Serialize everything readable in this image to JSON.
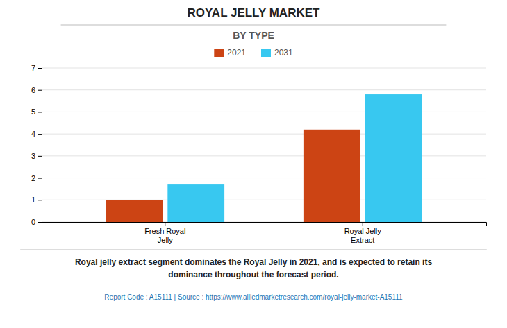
{
  "chart_data": {
    "type": "bar",
    "title": "ROYAL JELLY MARKET",
    "subtitle": "BY TYPE",
    "categories": [
      "Fresh Royal\nJelly",
      "Royal Jelly\nExtract"
    ],
    "series": [
      {
        "name": "2021",
        "color": "#CC4414",
        "values": [
          1.0,
          4.2
        ]
      },
      {
        "name": "2031",
        "color": "#38C8F0",
        "values": [
          1.7,
          5.8
        ]
      }
    ],
    "ylim": [
      0,
      7
    ],
    "yticks": [
      0,
      1,
      2,
      3,
      4,
      5,
      6,
      7
    ],
    "grid": true,
    "legend": "top",
    "annotations": [
      "Royal jelly extract segment dominates the Royal Jelly in 2021, and is expected to retain its\ndominance throughout the forecast period.",
      "Report Code : A15111  |  Source : https://www.alliedmarketresearch.com/royal-jelly-market-A15111"
    ]
  }
}
